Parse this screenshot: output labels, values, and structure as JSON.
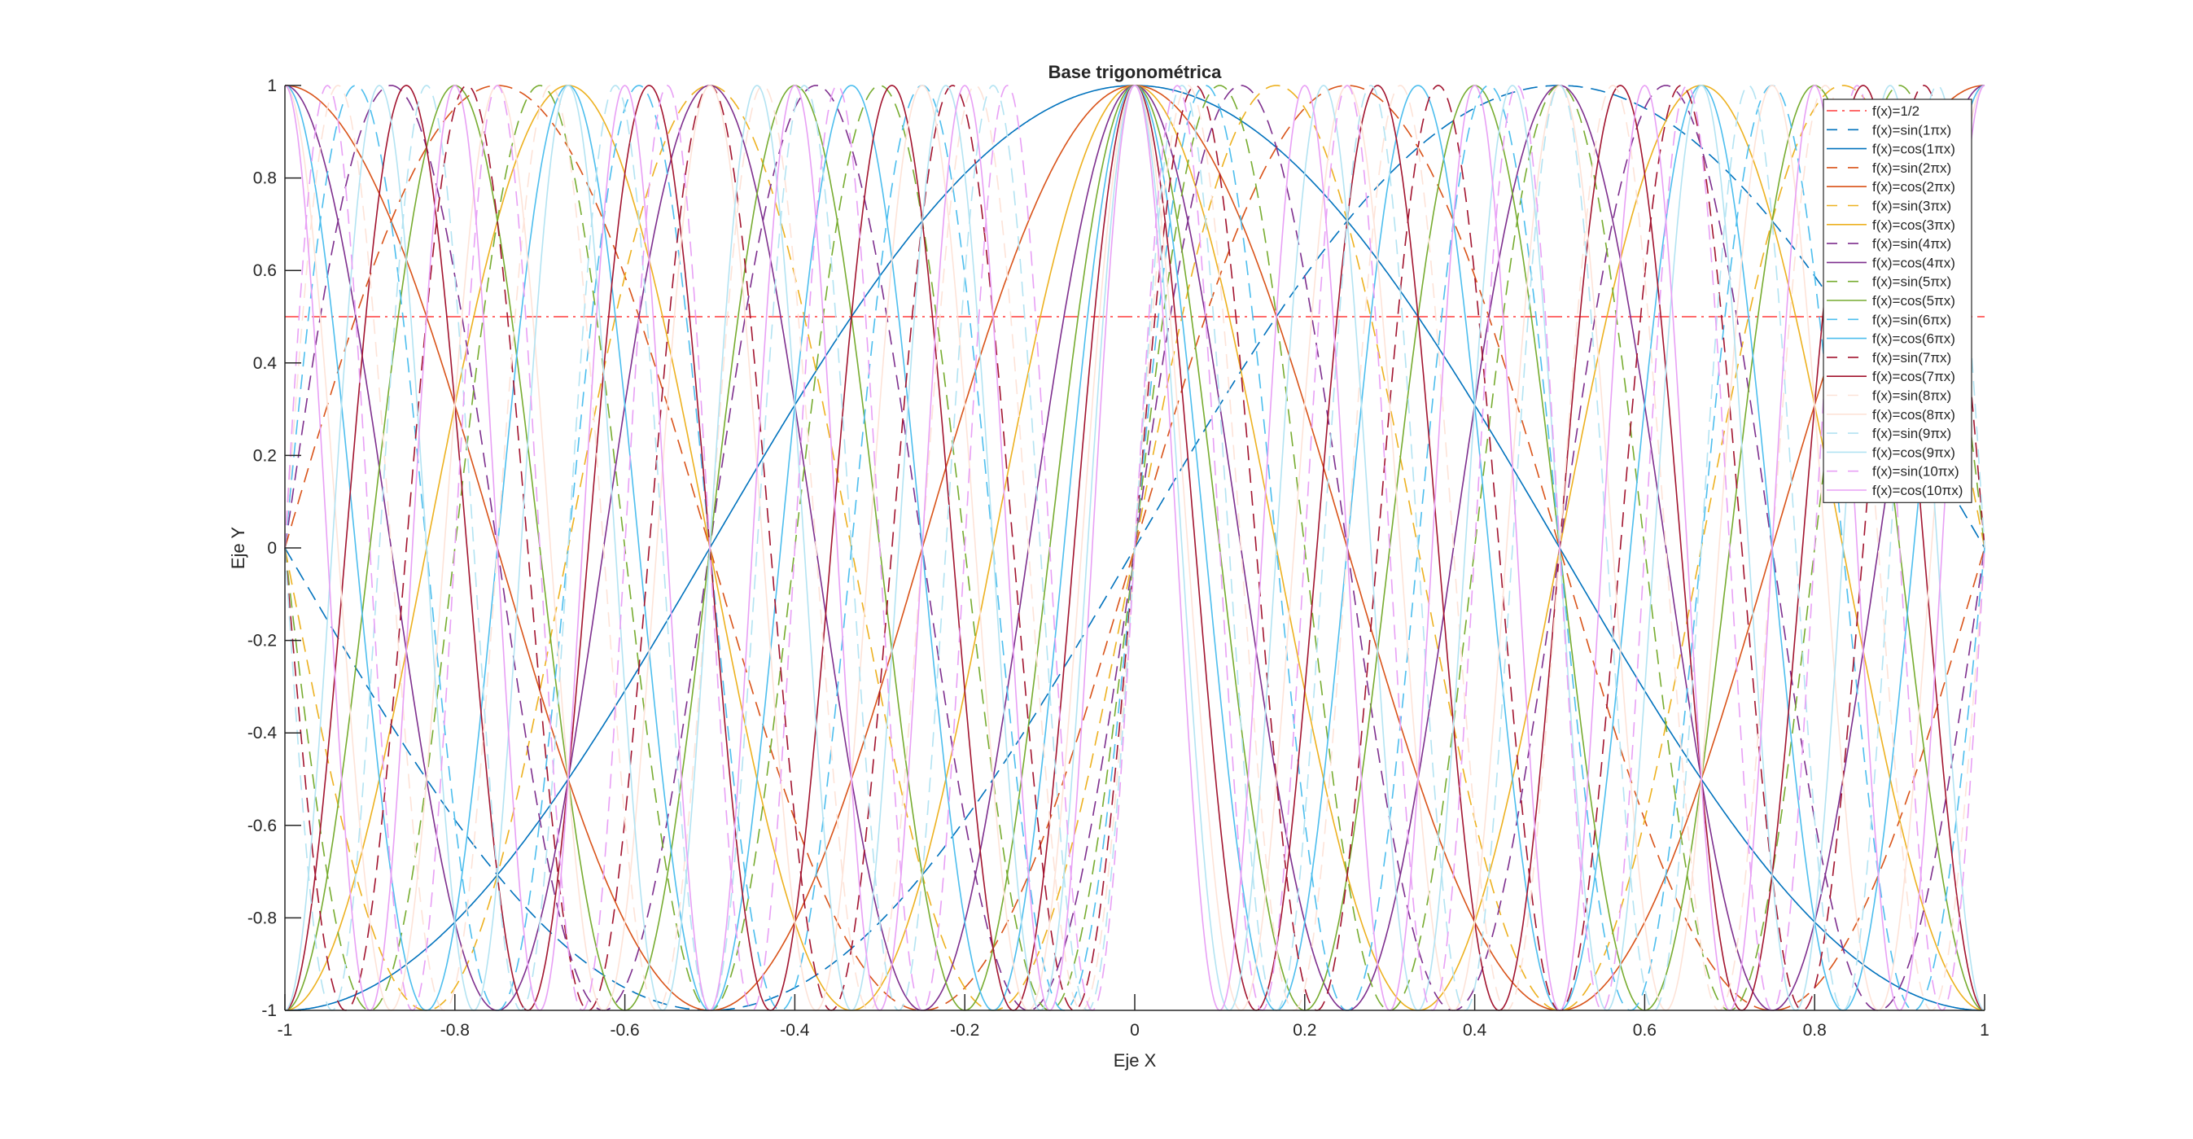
{
  "chart_data": {
    "type": "line",
    "title": "Base trigonométrica",
    "xlabel": "Eje X",
    "ylabel": "Eje Y",
    "xlim": [
      -1,
      1
    ],
    "ylim": [
      -1,
      1
    ],
    "xticks": [
      "-1",
      "-0.8",
      "-0.6",
      "-0.4",
      "-0.2",
      "0",
      "0.2",
      "0.4",
      "0.6",
      "0.8",
      "1"
    ],
    "yticks": [
      "-1",
      "-0.8",
      "-0.6",
      "-0.4",
      "-0.2",
      "0",
      "0.2",
      "0.4",
      "0.6",
      "0.8",
      "1"
    ],
    "grid": false,
    "legend_position": "top-right",
    "series": [
      {
        "name": "f(x)=1/2",
        "func": "const",
        "k": 0.5,
        "style": "dashdot",
        "color": "#FF3B3B"
      },
      {
        "name": "f(x)=sin(1πx)",
        "func": "sin",
        "k": 1,
        "style": "dashed",
        "color": "#0072BD"
      },
      {
        "name": "f(x)=cos(1πx)",
        "func": "cos",
        "k": 1,
        "style": "solid",
        "color": "#0072BD"
      },
      {
        "name": "f(x)=sin(2πx)",
        "func": "sin",
        "k": 2,
        "style": "dashed",
        "color": "#D95319"
      },
      {
        "name": "f(x)=cos(2πx)",
        "func": "cos",
        "k": 2,
        "style": "solid",
        "color": "#D95319"
      },
      {
        "name": "f(x)=sin(3πx)",
        "func": "sin",
        "k": 3,
        "style": "dashed",
        "color": "#EDB120"
      },
      {
        "name": "f(x)=cos(3πx)",
        "func": "cos",
        "k": 3,
        "style": "solid",
        "color": "#EDB120"
      },
      {
        "name": "f(x)=sin(4πx)",
        "func": "sin",
        "k": 4,
        "style": "dashed",
        "color": "#7E2F8E"
      },
      {
        "name": "f(x)=cos(4πx)",
        "func": "cos",
        "k": 4,
        "style": "solid",
        "color": "#7E2F8E"
      },
      {
        "name": "f(x)=sin(5πx)",
        "func": "sin",
        "k": 5,
        "style": "dashed",
        "color": "#77AC30"
      },
      {
        "name": "f(x)=cos(5πx)",
        "func": "cos",
        "k": 5,
        "style": "solid",
        "color": "#77AC30"
      },
      {
        "name": "f(x)=sin(6πx)",
        "func": "sin",
        "k": 6,
        "style": "dashed",
        "color": "#4DBEEE"
      },
      {
        "name": "f(x)=cos(6πx)",
        "func": "cos",
        "k": 6,
        "style": "solid",
        "color": "#4DBEEE"
      },
      {
        "name": "f(x)=sin(7πx)",
        "func": "sin",
        "k": 7,
        "style": "dashed",
        "color": "#A2142F"
      },
      {
        "name": "f(x)=cos(7πx)",
        "func": "cos",
        "k": 7,
        "style": "solid",
        "color": "#A2142F"
      },
      {
        "name": "f(x)=sin(8πx)",
        "func": "sin",
        "k": 8,
        "style": "dashed",
        "color": "#FDE3D8"
      },
      {
        "name": "f(x)=cos(8πx)",
        "func": "cos",
        "k": 8,
        "style": "solid",
        "color": "#FDE3D8"
      },
      {
        "name": "f(x)=sin(9πx)",
        "func": "sin",
        "k": 9,
        "style": "dashed",
        "color": "#B3E3F2"
      },
      {
        "name": "f(x)=cos(9πx)",
        "func": "cos",
        "k": 9,
        "style": "solid",
        "color": "#B3E3F2"
      },
      {
        "name": "f(x)=sin(10πx)",
        "func": "sin",
        "k": 10,
        "style": "dashed",
        "color": "#E8A0F5"
      },
      {
        "name": "f(x)=cos(10πx)",
        "func": "cos",
        "k": 10,
        "style": "solid",
        "color": "#E8A0F5"
      }
    ]
  }
}
